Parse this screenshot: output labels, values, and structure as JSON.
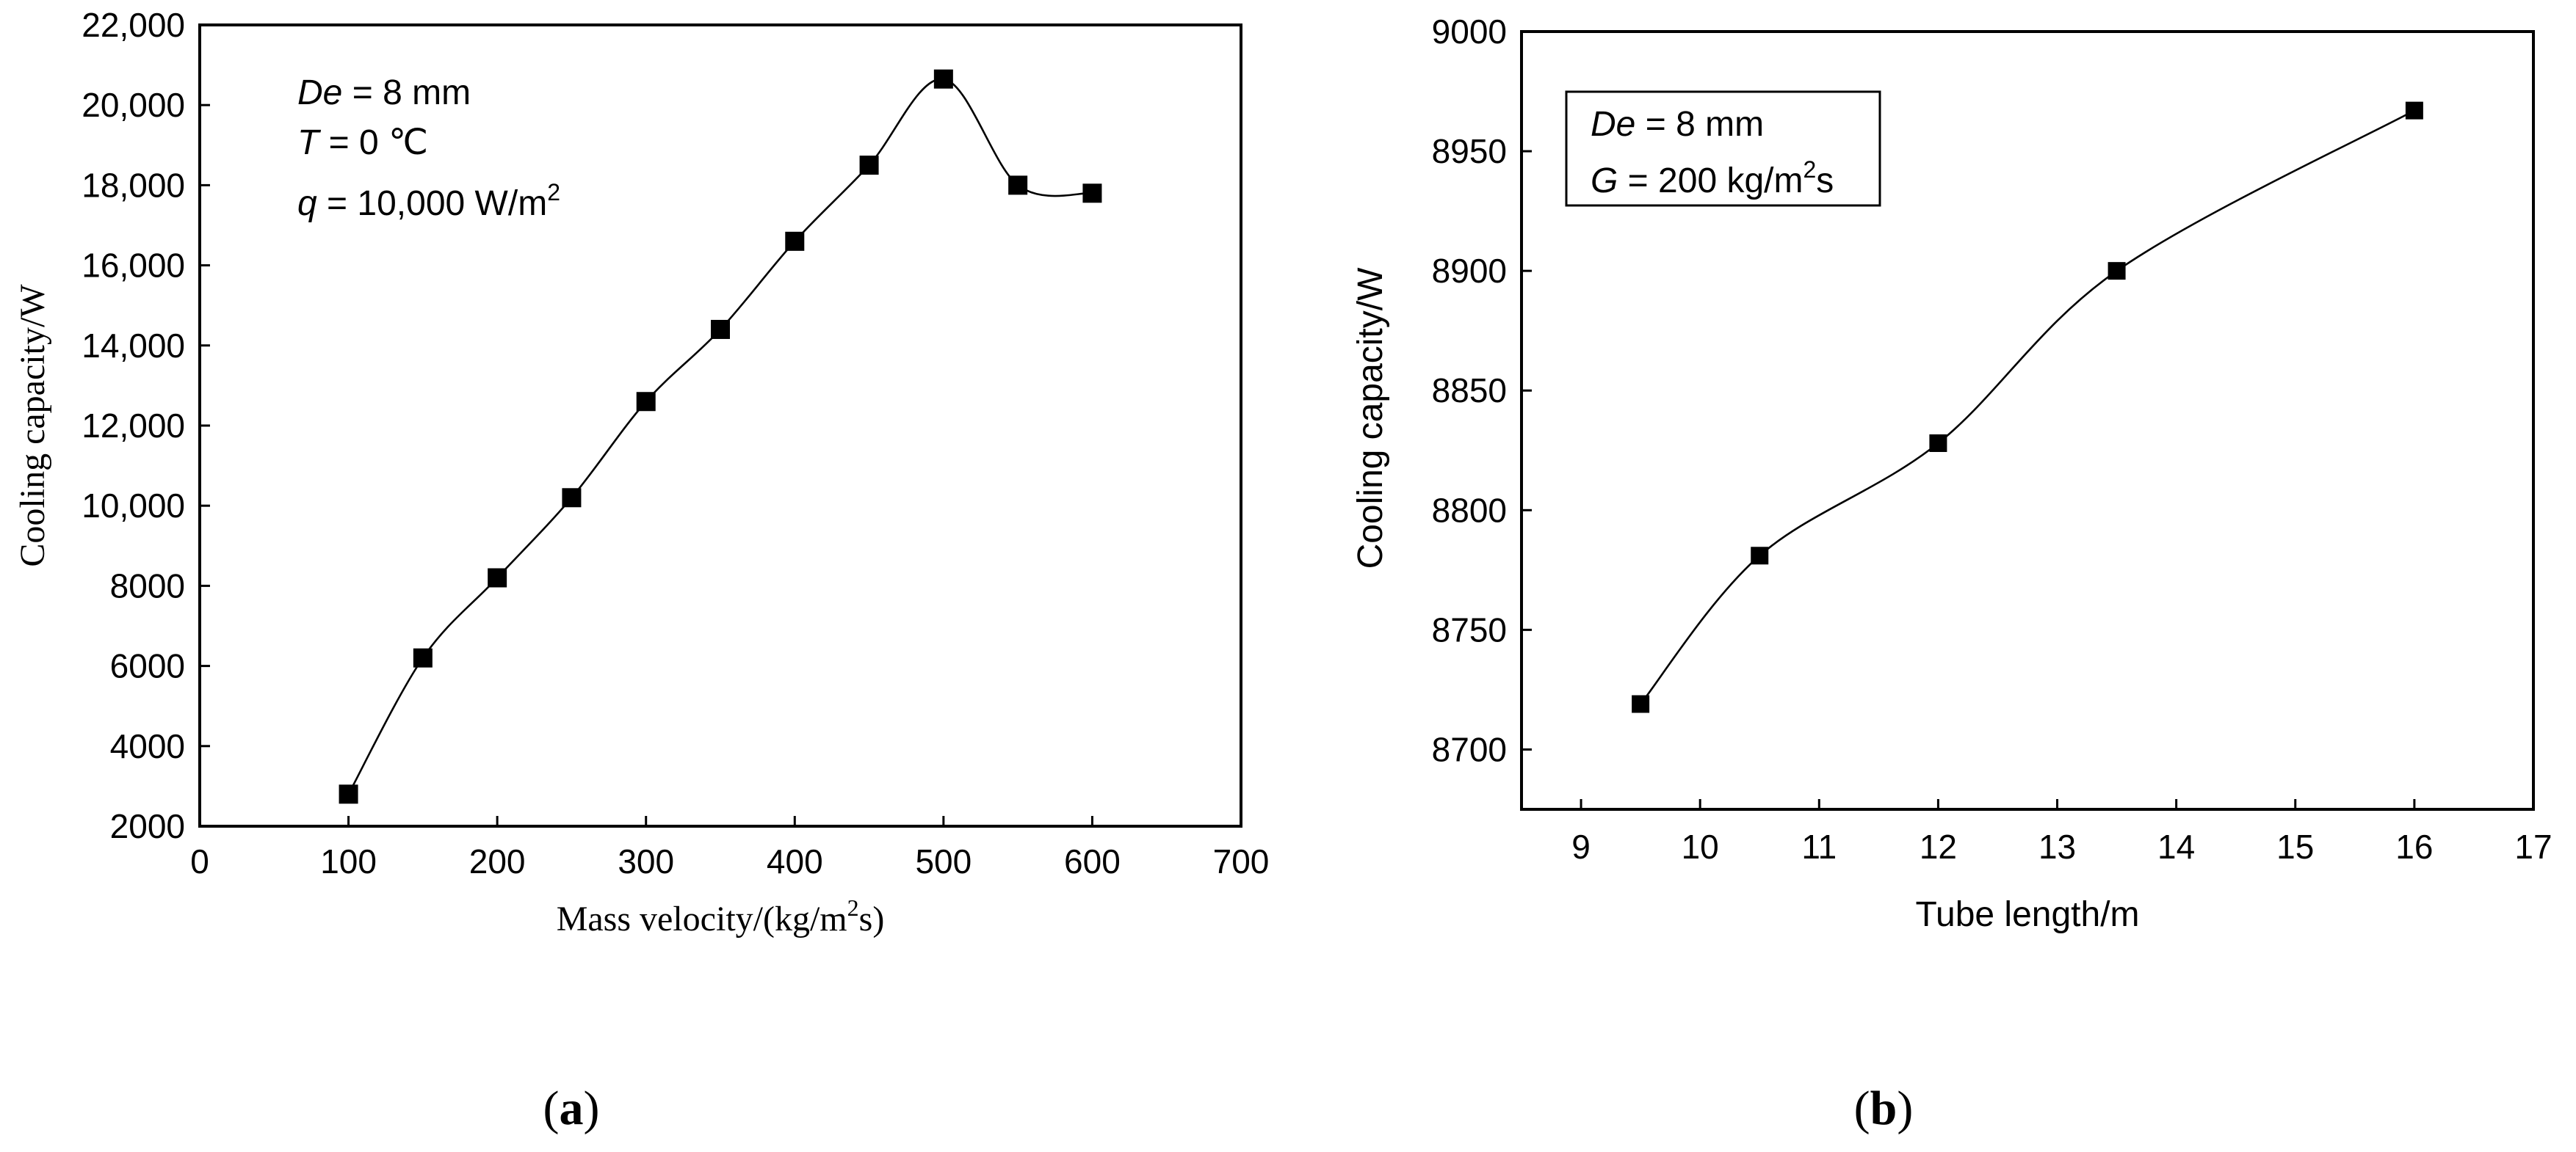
{
  "chart_data": [
    {
      "type": "line",
      "panel": "(a)",
      "panel_label_parts": [
        "(",
        "a",
        ")"
      ],
      "xlabel": "Mass velocity/(kg/m",
      "xlabel_sup": "2",
      "xlabel_tail": "s)",
      "ylabel": "Cooling capacity/W",
      "xlim": [
        0,
        700
      ],
      "ylim": [
        2000,
        22000
      ],
      "x_ticks": [
        0,
        100,
        200,
        300,
        400,
        500,
        600,
        700
      ],
      "x_tick_labels": [
        "0",
        "100",
        "200",
        "300",
        "400",
        "500",
        "600",
        "700"
      ],
      "y_ticks": [
        2000,
        4000,
        6000,
        8000,
        10000,
        12000,
        14000,
        16000,
        18000,
        20000,
        22000
      ],
      "y_tick_labels": [
        "2000",
        "4000",
        "6000",
        "8000",
        "10,000",
        "12,000",
        "14,000",
        "16,000",
        "18,000",
        "20,000",
        "22,000"
      ],
      "x": [
        100,
        150,
        200,
        250,
        300,
        350,
        400,
        450,
        500,
        550,
        600
      ],
      "y": [
        2800,
        6200,
        8200,
        10200,
        12600,
        14400,
        16600,
        18500,
        20650,
        18000,
        17800
      ],
      "marker": "square",
      "annotations": {
        "line1": {
          "italic": "De",
          "rest": " = 8 mm"
        },
        "line2": {
          "italic": "T",
          "rest": " = 0 ℃"
        },
        "line3": {
          "italic": "q",
          "rest": " = 10,000 W/m",
          "sup": "2"
        }
      }
    },
    {
      "type": "line",
      "panel": "(b)",
      "panel_label_parts": [
        "(",
        "b",
        ")"
      ],
      "xlabel": "Tube length/m",
      "ylabel": "Cooling capacity/W",
      "xlim": [
        8.5,
        17
      ],
      "ylim": [
        8675,
        9000
      ],
      "x_ticks": [
        9,
        10,
        11,
        12,
        13,
        14,
        15,
        16,
        17
      ],
      "x_tick_labels": [
        "9",
        "10",
        "11",
        "12",
        "13",
        "14",
        "15",
        "16",
        "17"
      ],
      "y_ticks": [
        8700,
        8750,
        8800,
        8850,
        8900,
        8950,
        9000
      ],
      "y_tick_labels": [
        "8700",
        "8750",
        "8800",
        "8850",
        "8900",
        "8950",
        "9000"
      ],
      "x": [
        9.5,
        10.5,
        12,
        13.5,
        16
      ],
      "y": [
        8719,
        8781,
        8828,
        8900,
        8967
      ],
      "marker": "square",
      "legend_box": true,
      "annotations": {
        "line1": {
          "italic": "De",
          "rest": " = 8 mm"
        },
        "line2": {
          "italic": "G",
          "rest": " = 200 kg/m",
          "sup": "2",
          "tail": "s"
        }
      }
    }
  ]
}
